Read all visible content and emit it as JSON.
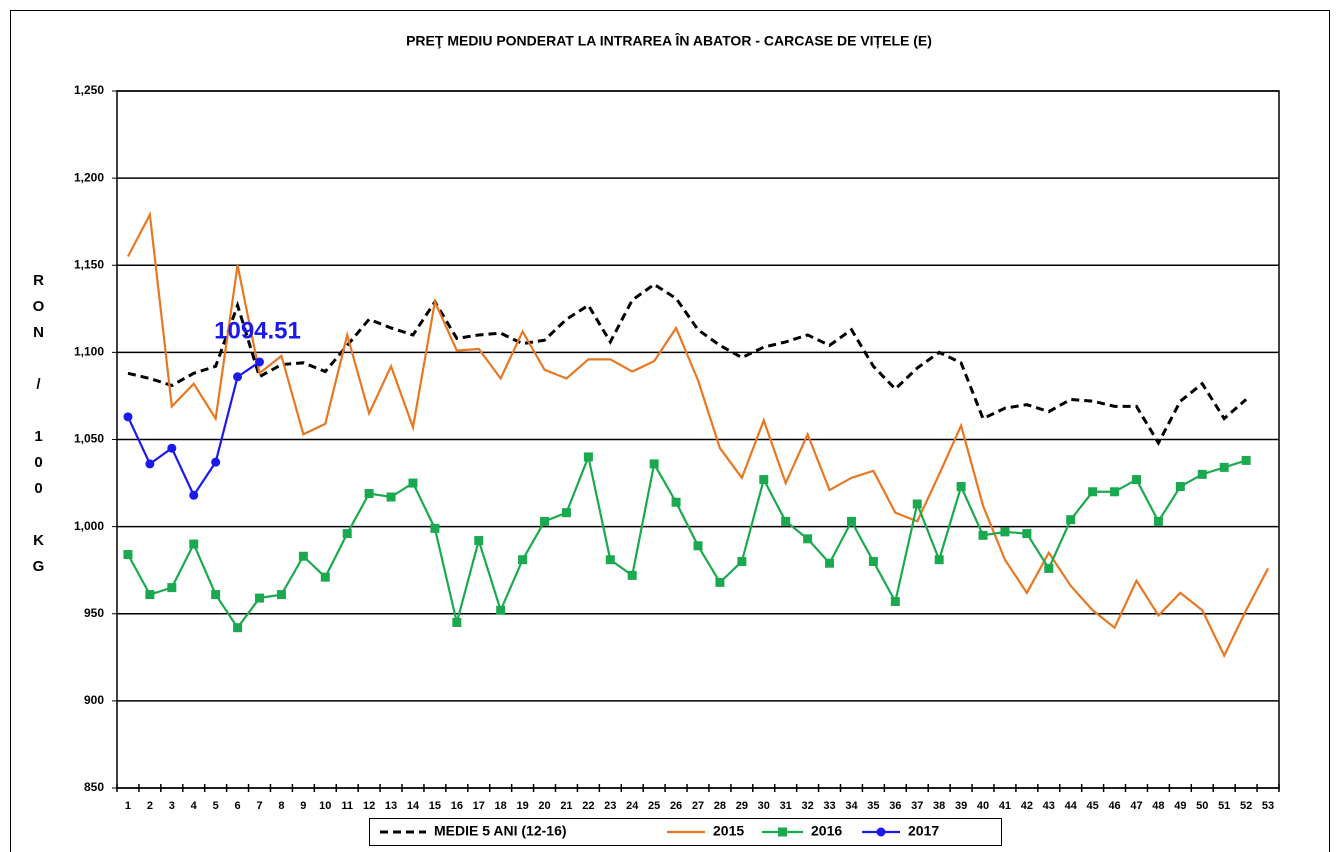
{
  "chart_data": {
    "type": "line",
    "title": "PREŢ MEDIU PONDERAT LA INTRAREA ÎN ABATOR - CARCASE DE VIȚELE (E)",
    "y_label": "RON / 100 KG",
    "annotation": "1094.51",
    "categories": [
      "1",
      "2",
      "3",
      "4",
      "5",
      "6",
      "7",
      "8",
      "9",
      "10",
      "11",
      "12",
      "13",
      "14",
      "15",
      "16",
      "17",
      "18",
      "19",
      "20",
      "21",
      "22",
      "23",
      "24",
      "25",
      "26",
      "27",
      "28",
      "29",
      "30",
      "31",
      "32",
      "33",
      "34",
      "35",
      "36",
      "37",
      "38",
      "39",
      "40",
      "41",
      "42",
      "43",
      "44",
      "45",
      "46",
      "47",
      "48",
      "49",
      "50",
      "51",
      "52",
      "53"
    ],
    "ylim": [
      850,
      1250
    ],
    "yticks": [
      850,
      900,
      950,
      {
        "value": 1000,
        "label": "1,000"
      },
      {
        "value": 1050,
        "label": "1,050"
      },
      {
        "value": 1100,
        "label": "1,100"
      },
      {
        "value": 1150,
        "label": "1,150"
      },
      {
        "value": 1200,
        "label": "1,200"
      },
      {
        "value": 1250,
        "label": "1,250"
      }
    ],
    "grid": true,
    "series": [
      {
        "name": "MEDIE 5 ANI (12-16)",
        "color": "#000000",
        "line_style": "dashed",
        "marker": null,
        "values": [
          1088,
          1085,
          1081,
          1088,
          1092,
          1127,
          1086,
          1093,
          1094,
          1089,
          1104,
          1119,
          1114,
          1110,
          1129,
          1108,
          1110,
          1111,
          1105,
          1107,
          1119,
          1127,
          1106,
          1130,
          1139,
          1131,
          1113,
          1104,
          1097,
          1103,
          1106,
          1110,
          1104,
          1113,
          1092,
          1079,
          1091,
          1100,
          1094,
          1062,
          1068,
          1070,
          1066,
          1073,
          1072,
          1069,
          1069,
          1048,
          1072,
          1082,
          1062,
          1073,
          null
        ]
      },
      {
        "name": "2015",
        "color": "#e87722",
        "line_style": "solid",
        "marker": null,
        "values": [
          1155,
          1179,
          1069,
          1082,
          1062,
          1150,
          1088,
          1098,
          1053,
          1059,
          1110,
          1065,
          1092,
          1057,
          1129,
          1101,
          1102,
          1085,
          1112,
          1090,
          1085,
          1096,
          1096,
          1089,
          1095,
          1114,
          1084,
          1045,
          1028,
          1061,
          1025,
          1053,
          1021,
          1028,
          1032,
          1008,
          1003,
          1030,
          1058,
          1012,
          981,
          962,
          985,
          966,
          952,
          942,
          969,
          949,
          962,
          952,
          926,
          952,
          976
        ]
      },
      {
        "name": "2016",
        "color": "#1aa94f",
        "line_style": "solid",
        "marker": "square",
        "values": [
          984,
          961,
          965,
          990,
          961,
          942,
          959,
          961,
          983,
          971,
          996,
          1019,
          1017,
          1025,
          999,
          945,
          992,
          952,
          981,
          1003,
          1008,
          1040,
          981,
          972,
          1036,
          1014,
          989,
          968,
          980,
          1027,
          1003,
          993,
          979,
          1003,
          980,
          957,
          1013,
          981,
          1023,
          995,
          997,
          996,
          976,
          1004,
          1020,
          1020,
          1027,
          1003,
          1023,
          1030,
          1034,
          1038,
          null
        ]
      },
      {
        "name": "2017",
        "color": "#1a1aee",
        "line_style": "solid",
        "marker": "circle",
        "values": [
          1063,
          1036,
          1045,
          1018,
          1037,
          1086,
          1094.51,
          null,
          null,
          null,
          null,
          null,
          null,
          null,
          null,
          null,
          null,
          null,
          null,
          null,
          null,
          null,
          null,
          null,
          null,
          null,
          null,
          null,
          null,
          null,
          null,
          null,
          null,
          null,
          null,
          null,
          null,
          null,
          null,
          null,
          null,
          null,
          null,
          null,
          null,
          null,
          null,
          null,
          null,
          null,
          null,
          null,
          null
        ]
      }
    ]
  }
}
